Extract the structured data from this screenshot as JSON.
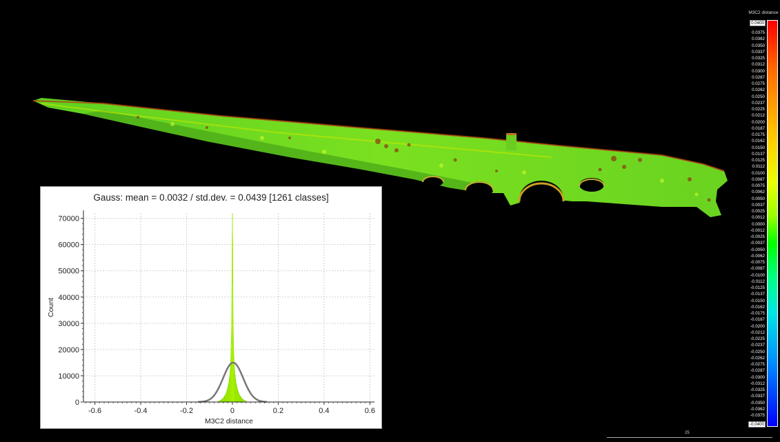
{
  "view": {
    "background": "#000000"
  },
  "histogram": {
    "title": "Gauss: mean = 0.0032 / std.dev. = 0.0439 [1261 classes]",
    "xlabel": "M3C2 distance",
    "ylabel": "Count"
  },
  "color_scale": {
    "title": "M3C2 distance",
    "max_label": "0.0400",
    "min_label": "-0.0400",
    "labels": [
      "0.0375",
      "0.0362",
      "0.0350",
      "0.0337",
      "0.0325",
      "0.0312",
      "0.0300",
      "0.0287",
      "0.0275",
      "0.0262",
      "0.0250",
      "0.0237",
      "0.0225",
      "0.0212",
      "0.0200",
      "0.0187",
      "0.0175",
      "0.0162",
      "0.0150",
      "0.0137",
      "0.0125",
      "0.0112",
      "0.0100",
      "0.0087",
      "0.0075",
      "0.0062",
      "0.0050",
      "0.0037",
      "0.0025",
      "0.0012",
      "0.0000",
      "-0.0012",
      "-0.0025",
      "-0.0037",
      "-0.0050",
      "-0.0062",
      "-0.0075",
      "-0.0087",
      "-0.0100",
      "-0.0112",
      "-0.0125",
      "-0.0137",
      "-0.0150",
      "-0.0162",
      "-0.0175",
      "-0.0187",
      "-0.0200",
      "-0.0212",
      "-0.0225",
      "-0.0237",
      "-0.0250",
      "-0.0262",
      "-0.0275",
      "-0.0287",
      "-0.0300",
      "-0.0312",
      "-0.0325",
      "-0.0337",
      "-0.0350",
      "-0.0362",
      "-0.0375"
    ],
    "colors": {
      "max": "#ff0000",
      "zero": "#00ff00",
      "min": "#0000ff"
    }
  },
  "scale_bar": {
    "label": "25"
  },
  "chart_data": {
    "type": "bar",
    "title": "Gauss: mean = 0.0032 / std.dev. = 0.0439 [1261 classes]",
    "xlabel": "M3C2 distance",
    "ylabel": "Count",
    "xlim": [
      -0.65,
      0.62
    ],
    "ylim": [
      0,
      72000
    ],
    "xticks": [
      -0.6,
      -0.4,
      -0.2,
      0,
      0.2,
      0.4,
      0.6
    ],
    "yticks": [
      0,
      10000,
      20000,
      30000,
      40000,
      50000,
      60000,
      70000
    ],
    "grid": true,
    "histogram": {
      "color": "#8fe000",
      "x": [
        -0.06,
        -0.05,
        -0.04,
        -0.03,
        -0.025,
        -0.02,
        -0.015,
        -0.01,
        -0.007,
        -0.005,
        -0.003,
        -0.002,
        -0.001,
        0,
        0.001,
        0.002,
        0.003,
        0.005,
        0.007,
        0.01,
        0.015,
        0.02,
        0.025,
        0.03,
        0.04,
        0.05,
        0.06
      ],
      "values": [
        300,
        700,
        1500,
        2800,
        4000,
        5600,
        7800,
        11500,
        16000,
        22000,
        32000,
        45000,
        62000,
        72000,
        62000,
        45000,
        32000,
        22000,
        16000,
        11500,
        7800,
        5600,
        4000,
        2800,
        1500,
        700,
        300
      ]
    },
    "gauss_fit": {
      "color": "#777777",
      "mean": 0.0032,
      "std": 0.0439,
      "peak": 15000
    }
  }
}
